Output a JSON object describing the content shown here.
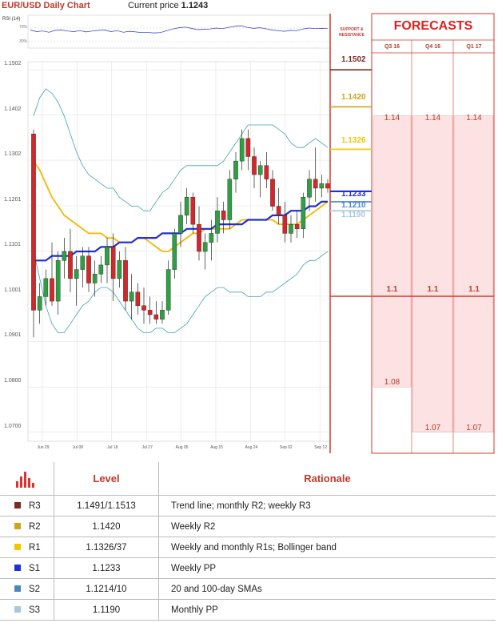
{
  "header": {
    "title": "EUR/USD Daily Chart",
    "price_label": "Current price",
    "price_value": "1.1243"
  },
  "rsi": {
    "label": "RSI (14)",
    "upper_tick": "70%",
    "lower_tick": "30%"
  },
  "sr_header": [
    "SUPPORT &",
    "RESISTANCE"
  ],
  "forecasts": {
    "title": "FORECASTS",
    "columns": [
      "Q3 16",
      "Q4 16",
      "Q1 17"
    ],
    "upper": [
      "1.14",
      "1.14",
      "1.14"
    ],
    "middle": [
      "1.1",
      "1.1",
      "1.1"
    ],
    "lower": [
      "1.08",
      "1.07",
      "1.07"
    ]
  },
  "colors": {
    "accent": "#c0392b",
    "r3": "#7b2b22",
    "r2": "#d1a216",
    "r1": "#f2c500",
    "s1": "#1f2fd6",
    "s2": "#4a86c5",
    "s3": "#a8c8e0",
    "sma20": "#f5b700",
    "sma100": "#1f2fd6",
    "bollinger": "#3fa5a5"
  },
  "chart_data": {
    "type": "candlestick",
    "title": "EUR/USD Daily Chart",
    "ylim": [
      1.068,
      1.152
    ],
    "y_ticks": [
      "1.0700",
      "1.0800",
      "1.0901",
      "1.1001",
      "1.1101",
      "1.1201",
      "1.1302",
      "1.1402",
      "1.1502"
    ],
    "x_ticks": [
      "Jun 29",
      "Jul 08",
      "Jul 18",
      "Jul 27",
      "Aug 05",
      "Aug 15",
      "Aug 24",
      "Sep 02",
      "Sep 12"
    ],
    "levels": [
      {
        "name": "R3",
        "value": "1.1502"
      },
      {
        "name": "R2",
        "value": "1.1420"
      },
      {
        "name": "R1",
        "value": "1.1326"
      },
      {
        "name": "S1",
        "value": "1.1233"
      },
      {
        "name": "S2",
        "value": "1.1210"
      },
      {
        "name": "S3",
        "value": "1.1190"
      }
    ],
    "series": [
      {
        "values": [
          [
            1.136,
            1.137,
            1.091,
            1.097
          ],
          [
            1.097,
            1.103,
            1.094,
            1.1
          ],
          [
            1.1,
            1.106,
            1.098,
            1.104
          ],
          [
            1.104,
            1.112,
            1.098,
            1.099
          ],
          [
            1.099,
            1.11,
            1.096,
            1.108
          ],
          [
            1.108,
            1.113,
            1.104,
            1.11
          ],
          [
            1.11,
            1.115,
            1.101,
            1.104
          ],
          [
            1.104,
            1.109,
            1.098,
            1.106
          ],
          [
            1.106,
            1.111,
            1.102,
            1.109
          ],
          [
            1.109,
            1.111,
            1.101,
            1.103
          ],
          [
            1.103,
            1.108,
            1.1,
            1.105
          ],
          [
            1.105,
            1.109,
            1.103,
            1.107
          ],
          [
            1.107,
            1.113,
            1.103,
            1.111
          ],
          [
            1.111,
            1.114,
            1.099,
            1.104
          ],
          [
            1.104,
            1.11,
            1.102,
            1.108
          ],
          [
            1.108,
            1.111,
            1.097,
            1.099
          ],
          [
            1.099,
            1.105,
            1.095,
            1.101
          ],
          [
            1.101,
            1.103,
            1.096,
            1.098
          ],
          [
            1.098,
            1.102,
            1.094,
            1.097
          ],
          [
            1.097,
            1.1,
            1.094,
            1.096
          ],
          [
            1.096,
            1.099,
            1.094,
            1.095
          ],
          [
            1.095,
            1.099,
            1.094,
            1.097
          ],
          [
            1.097,
            1.108,
            1.096,
            1.106
          ],
          [
            1.106,
            1.115,
            1.104,
            1.114
          ],
          [
            1.114,
            1.121,
            1.111,
            1.118
          ],
          [
            1.118,
            1.124,
            1.116,
            1.122
          ],
          [
            1.122,
            1.123,
            1.114,
            1.116
          ],
          [
            1.116,
            1.12,
            1.108,
            1.11
          ],
          [
            1.11,
            1.114,
            1.106,
            1.112
          ],
          [
            1.112,
            1.117,
            1.108,
            1.114
          ],
          [
            1.114,
            1.122,
            1.112,
            1.119
          ],
          [
            1.119,
            1.121,
            1.114,
            1.117
          ],
          [
            1.117,
            1.128,
            1.115,
            1.126
          ],
          [
            1.126,
            1.132,
            1.123,
            1.13
          ],
          [
            1.13,
            1.137,
            1.128,
            1.135
          ],
          [
            1.135,
            1.137,
            1.128,
            1.131
          ],
          [
            1.131,
            1.133,
            1.124,
            1.127
          ],
          [
            1.127,
            1.13,
            1.122,
            1.129
          ],
          [
            1.129,
            1.132,
            1.124,
            1.126
          ],
          [
            1.126,
            1.128,
            1.119,
            1.12
          ],
          [
            1.12,
            1.124,
            1.116,
            1.118
          ],
          [
            1.118,
            1.121,
            1.112,
            1.114
          ],
          [
            1.114,
            1.118,
            1.112,
            1.116
          ],
          [
            1.116,
            1.119,
            1.113,
            1.115
          ],
          [
            1.115,
            1.123,
            1.113,
            1.122
          ],
          [
            1.122,
            1.128,
            1.119,
            1.126
          ],
          [
            1.126,
            1.133,
            1.121,
            1.124
          ],
          [
            1.124,
            1.127,
            1.122,
            1.125
          ],
          [
            1.125,
            1.126,
            1.123,
            1.124
          ]
        ]
      },
      {
        "name": "20-day SMA",
        "values": [
          1.13,
          1.128,
          1.125,
          1.122,
          1.12,
          1.118,
          1.117,
          1.116,
          1.115,
          1.114,
          1.114,
          1.114,
          1.113,
          1.113,
          1.112,
          1.112,
          1.112,
          1.113,
          1.113,
          1.112,
          1.111,
          1.11,
          1.11,
          1.111,
          1.112,
          1.113,
          1.114,
          1.114,
          1.115,
          1.115,
          1.115,
          1.115,
          1.115,
          1.116,
          1.117,
          1.117,
          1.117,
          1.117,
          1.117,
          1.117,
          1.116,
          1.116,
          1.116,
          1.116,
          1.117,
          1.118,
          1.119,
          1.12,
          1.121
        ]
      },
      {
        "name": "100-day SMA",
        "values": [
          1.108,
          1.108,
          1.108,
          1.109,
          1.109,
          1.109,
          1.109,
          1.11,
          1.11,
          1.11,
          1.11,
          1.111,
          1.111,
          1.111,
          1.112,
          1.112,
          1.112,
          1.113,
          1.113,
          1.113,
          1.113,
          1.114,
          1.114,
          1.114,
          1.114,
          1.115,
          1.115,
          1.115,
          1.115,
          1.115,
          1.116,
          1.116,
          1.116,
          1.116,
          1.116,
          1.117,
          1.117,
          1.117,
          1.117,
          1.118,
          1.118,
          1.118,
          1.119,
          1.119,
          1.119,
          1.12,
          1.12,
          1.121,
          1.121
        ]
      },
      {
        "name": "Bollinger upper",
        "values": [
          1.14,
          1.144,
          1.146,
          1.145,
          1.143,
          1.14,
          1.136,
          1.132,
          1.129,
          1.127,
          1.126,
          1.125,
          1.124,
          1.124,
          1.122,
          1.121,
          1.12,
          1.12,
          1.119,
          1.119,
          1.121,
          1.123,
          1.124,
          1.126,
          1.128,
          1.129,
          1.129,
          1.129,
          1.129,
          1.129,
          1.129,
          1.13,
          1.132,
          1.134,
          1.136,
          1.138,
          1.138,
          1.138,
          1.138,
          1.138,
          1.137,
          1.136,
          1.134,
          1.133,
          1.133,
          1.134,
          1.135,
          1.134,
          1.133
        ]
      },
      {
        "name": "Bollinger lower",
        "values": [
          1.11,
          1.104,
          1.098,
          1.094,
          1.092,
          1.092,
          1.094,
          1.096,
          1.098,
          1.099,
          1.101,
          1.102,
          1.102,
          1.101,
          1.099,
          1.097,
          1.095,
          1.093,
          1.092,
          1.092,
          1.093,
          1.093,
          1.092,
          1.092,
          1.093,
          1.094,
          1.096,
          1.098,
          1.1,
          1.101,
          1.102,
          1.102,
          1.101,
          1.101,
          1.101,
          1.1,
          1.1,
          1.1,
          1.101,
          1.101,
          1.102,
          1.103,
          1.104,
          1.105,
          1.107,
          1.108,
          1.108,
          1.109,
          1.11
        ]
      }
    ],
    "rsi_values": [
      55,
      50,
      52,
      48,
      54,
      55,
      52,
      50,
      53,
      49,
      52,
      54,
      55,
      50,
      53,
      48,
      51,
      49,
      47,
      47,
      46,
      47,
      53,
      58,
      62,
      64,
      60,
      56,
      57,
      58,
      61,
      59,
      63,
      66,
      68,
      63,
      60,
      62,
      59,
      55,
      53,
      51,
      54,
      53,
      58,
      61,
      59,
      60,
      59
    ]
  },
  "levels_table": {
    "headers": {
      "level": "Level",
      "rationale": "Rationale"
    },
    "rows": [
      {
        "name": "R3",
        "level": "1.1491/1.1513",
        "rationale": "Trend line; monthly R2; weekly R3"
      },
      {
        "name": "R2",
        "level": "1.1420",
        "rationale": "Weekly R2"
      },
      {
        "name": "R1",
        "level": "1.1326/37",
        "rationale": "Weekly and monthly R1s; Bollinger band"
      },
      {
        "name": "S1",
        "level": "1.1233",
        "rationale": "Weekly PP"
      },
      {
        "name": "S2",
        "level": "1.1214/10",
        "rationale": "20 and 100-day SMAs"
      },
      {
        "name": "S3",
        "level": "1.1190",
        "rationale": "Monthly PP"
      }
    ]
  }
}
